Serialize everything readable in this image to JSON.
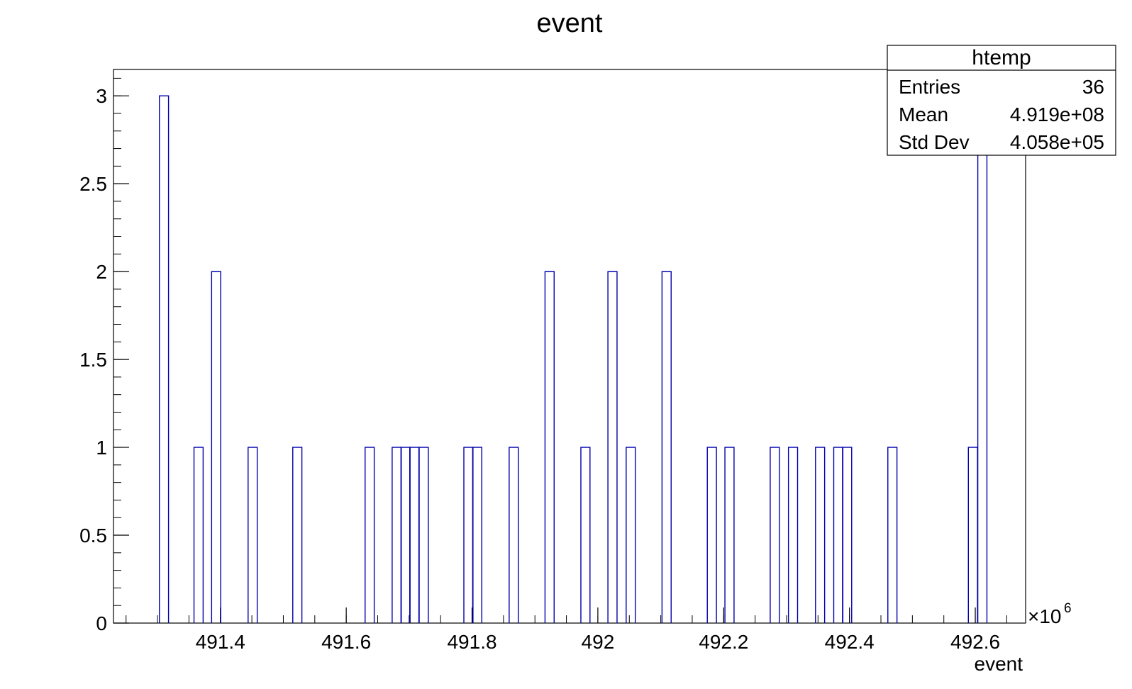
{
  "chart_data": {
    "type": "histogram",
    "title": "event",
    "xlabel": "event",
    "ylabel": "",
    "x_exponent_base": "10",
    "x_exponent_power": "6",
    "xlim": [
      491.23,
      492.68
    ],
    "ylim": [
      0,
      3.15
    ],
    "x_ticks": [
      491.4,
      491.6,
      491.8,
      492,
      492.2,
      492.4,
      492.6
    ],
    "x_tick_labels": [
      "491.4",
      "491.6",
      "491.8",
      "492",
      "492.2",
      "492.4",
      "492.6"
    ],
    "y_ticks": [
      0,
      0.5,
      1,
      1.5,
      2,
      2.5,
      3
    ],
    "y_tick_labels": [
      "0",
      "0.5",
      "1",
      "1.5",
      "2",
      "2.5",
      "3"
    ],
    "bin_width": 0.0145,
    "bins": [
      {
        "x": 491.303,
        "count": 3
      },
      {
        "x": 491.358,
        "count": 1
      },
      {
        "x": 491.386,
        "count": 2
      },
      {
        "x": 491.444,
        "count": 1
      },
      {
        "x": 491.515,
        "count": 1
      },
      {
        "x": 491.63,
        "count": 1
      },
      {
        "x": 491.673,
        "count": 1
      },
      {
        "x": 491.687,
        "count": 1
      },
      {
        "x": 491.701,
        "count": 1
      },
      {
        "x": 491.716,
        "count": 1
      },
      {
        "x": 491.787,
        "count": 1
      },
      {
        "x": 491.801,
        "count": 1
      },
      {
        "x": 491.859,
        "count": 1
      },
      {
        "x": 491.916,
        "count": 2
      },
      {
        "x": 491.973,
        "count": 1
      },
      {
        "x": 492.016,
        "count": 2
      },
      {
        "x": 492.045,
        "count": 1
      },
      {
        "x": 492.102,
        "count": 2
      },
      {
        "x": 492.174,
        "count": 1
      },
      {
        "x": 492.202,
        "count": 1
      },
      {
        "x": 492.274,
        "count": 1
      },
      {
        "x": 492.303,
        "count": 1
      },
      {
        "x": 492.346,
        "count": 1
      },
      {
        "x": 492.375,
        "count": 1
      },
      {
        "x": 492.389,
        "count": 1
      },
      {
        "x": 492.461,
        "count": 1
      },
      {
        "x": 492.589,
        "count": 1
      },
      {
        "x": 492.604,
        "count": 3
      }
    ],
    "line_color": "#0000ad",
    "stats_box": {
      "title": "htemp",
      "rows": [
        {
          "label": "Entries",
          "value": "36"
        },
        {
          "label": "Mean",
          "value": "4.919e+08"
        },
        {
          "label": "Std Dev",
          "value": "4.058e+05"
        }
      ]
    }
  }
}
